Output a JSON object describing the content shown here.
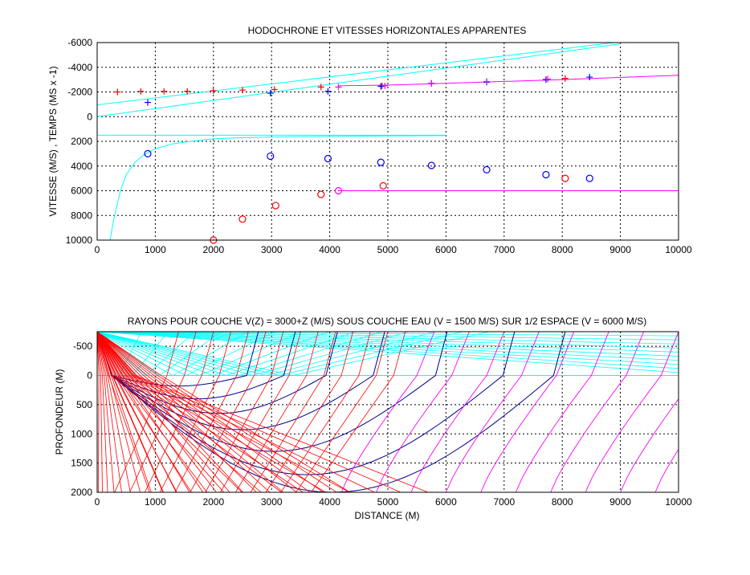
{
  "chart_data": [
    {
      "type": "scatter",
      "title": "HODOCHRONE ET VITESSES HORIZONTALES APPARENTES",
      "xlabel": "",
      "ylabel": "VITESSE (M/S) , TEMPS (MS x -1)",
      "xlim": [
        0,
        10000
      ],
      "ylim": [
        -6000,
        10000
      ],
      "y_reversed": true,
      "grid": true,
      "x_ticks": [
        "0",
        "1000",
        "2000",
        "3000",
        "4000",
        "5000",
        "6000",
        "7000",
        "8000",
        "9000",
        "10000"
      ],
      "y_ticks": [
        "-6000",
        "-4000",
        "-2000",
        "0",
        "2000",
        "4000",
        "6000",
        "8000",
        "10000"
      ],
      "colors": {
        "cyan": "#00ffff",
        "magenta": "#ff00ff",
        "blue": "#0000ff",
        "red": "#ff0000"
      },
      "series": [
        {
          "marker": "line",
          "color": "cyan",
          "x": [
            0,
            9000
          ],
          "y": [
            0,
            -5900
          ]
        },
        {
          "marker": "line",
          "color": "cyan",
          "x": [
            0,
            8900
          ],
          "y": [
            -950,
            -6000
          ]
        },
        {
          "marker": "line",
          "color": "cyan",
          "x": [
            0,
            6000
          ],
          "y": [
            1500,
            1500
          ]
        },
        {
          "marker": "line",
          "color": "cyan",
          "x": [
            220,
            300,
            400,
            500,
            650,
            800,
            1000,
            1300,
            1600,
            2000,
            2500,
            3000,
            4000,
            5000,
            6000
          ],
          "y": [
            10000,
            8000,
            6000,
            4700,
            3700,
            3100,
            2600,
            2200,
            2000,
            1800,
            1700,
            1650,
            1600,
            1560,
            1540
          ]
        },
        {
          "marker": "line",
          "color": "magenta",
          "x": [
            4150,
            5000,
            6000,
            7000,
            8000,
            9000,
            10000
          ],
          "y": [
            -2500,
            -2550,
            -2700,
            -2850,
            -3000,
            -3180,
            -3350
          ]
        },
        {
          "marker": "line",
          "color": "magenta",
          "x": [
            4150,
            10000
          ],
          "y": [
            6000,
            6000
          ]
        },
        {
          "marker": "+",
          "color": "red",
          "x": [
            350,
            750,
            1150,
            1550,
            2000,
            2500,
            3050,
            3850,
            4900,
            8050
          ],
          "y": [
            -2000,
            -2050,
            -2050,
            -2050,
            -2100,
            -2150,
            -2200,
            -2400,
            -2500,
            -3100
          ]
        },
        {
          "marker": "+",
          "color": "blue",
          "x": [
            870,
            2980,
            3970,
            4880,
            5750,
            6700,
            7720,
            8470
          ],
          "y": [
            -1150,
            -1900,
            -2050,
            -2450,
            -2700,
            -2800,
            -3000,
            -3200
          ]
        },
        {
          "marker": "+",
          "color": "magenta",
          "x": [
            4150,
            4950,
            5750,
            6700,
            7750
          ],
          "y": [
            -2400,
            -2500,
            -2700,
            -2850,
            -3050
          ]
        },
        {
          "marker": "o",
          "color": "blue",
          "x": [
            870,
            2980,
            3970,
            4880,
            5750,
            6700,
            7720,
            8470
          ],
          "y": [
            3000,
            3200,
            3400,
            3700,
            3950,
            4300,
            4700,
            5000
          ]
        },
        {
          "marker": "o",
          "color": "red",
          "x": [
            2000,
            2500,
            3070,
            3850,
            4920,
            8050
          ],
          "y": [
            10000,
            8300,
            7200,
            6300,
            5600,
            5000
          ]
        },
        {
          "marker": "o",
          "color": "magenta",
          "x": [
            4150
          ],
          "y": [
            6000
          ]
        }
      ]
    },
    {
      "type": "line",
      "title": "RAYONS POUR COUCHE V(Z) = 3000+Z (M/S) SOUS COUCHE EAU (V = 1500 M/S) SUR 1/2 ESPACE (V = 6000 M/S)",
      "xlabel": "DISTANCE (M)",
      "ylabel": "PROFONDEUR (M)",
      "xlim": [
        0,
        10000
      ],
      "ylim": [
        -750,
        2000
      ],
      "y_reversed": true,
      "grid": true,
      "x_ticks": [
        "0",
        "1000",
        "2000",
        "3000",
        "4000",
        "5000",
        "6000",
        "7000",
        "8000",
        "9000",
        "10000"
      ],
      "y_ticks": [
        "-500",
        "0",
        "500",
        "1000",
        "1500",
        "2000"
      ],
      "water_depth": 750,
      "ray_families": [
        {
          "name": "water_rays",
          "color": "cyan",
          "note": "rays in water layer from 0 to -750"
        },
        {
          "name": "gradient_rays",
          "color": "blue",
          "turning_depths": [
            180,
            400,
            650,
            930,
            1300,
            1700,
            2000
          ]
        },
        {
          "name": "steep_rays",
          "color": "red"
        },
        {
          "name": "halfspace_rays",
          "color": "magenta"
        }
      ],
      "colors": {
        "cyan": "#00ffff",
        "magenta": "#ff00ff",
        "blue": "#00008b",
        "red": "#ff0000",
        "surface": "#00ffff"
      }
    }
  ]
}
